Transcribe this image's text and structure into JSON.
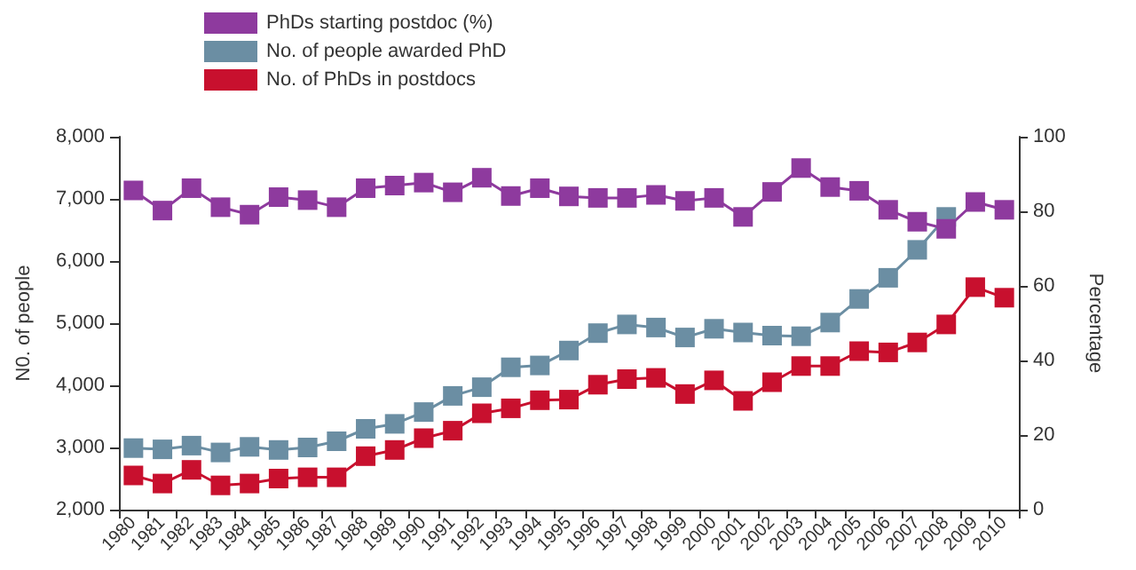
{
  "chart_data": {
    "type": "line",
    "ylabel": "N0. of people",
    "y2label": "Percentage",
    "categories": [
      "1980",
      "1981",
      "1982",
      "1983",
      "1984",
      "1985",
      "1986",
      "1987",
      "1988",
      "1989",
      "1990",
      "1991",
      "1992",
      "1993",
      "1994",
      "1995",
      "1996",
      "1997",
      "1998",
      "1999",
      "2000",
      "2001",
      "2002",
      "2003",
      "2004",
      "2005",
      "2006",
      "2007",
      "2008",
      "2009",
      "2010"
    ],
    "series": [
      {
        "name": "PhDs starting postdoc (%)",
        "color": "#8e3a9e",
        "axis": "y2",
        "values": [
          85.6,
          80.2,
          86.2,
          81.1,
          79.1,
          83.8,
          83.0,
          81.1,
          86.2,
          86.9,
          87.7,
          85.1,
          89.0,
          84.1,
          86.2,
          84.0,
          83.6,
          83.6,
          84.4,
          82.8,
          83.6,
          78.5,
          85.2,
          91.6,
          86.5,
          85.5,
          80.4,
          77.2,
          75.3,
          82.5,
          80.4
        ]
      },
      {
        "name": "No. of people awarded PhD",
        "color": "#6b8ea3",
        "values": [
          2990,
          2970,
          3030,
          2920,
          3010,
          2960,
          3000,
          3100,
          3300,
          3380,
          3570,
          3830,
          3970,
          4290,
          4320,
          4560,
          4840,
          4980,
          4930,
          4770,
          4910,
          4850,
          4800,
          4790,
          5010,
          5390,
          5730,
          6180,
          6710,
          null,
          null
        ]
      },
      {
        "name": "No. of PhDs in postdocs",
        "color": "#c8102e",
        "values": [
          2550,
          2420,
          2640,
          2390,
          2420,
          2500,
          2520,
          2520,
          2860,
          2960,
          3150,
          3270,
          3550,
          3630,
          3760,
          3770,
          4010,
          4100,
          4120,
          3860,
          4080,
          3750,
          4050,
          4310,
          4310,
          4550,
          4530,
          4690,
          4980,
          5580,
          5410
        ]
      }
    ],
    "ylim": [
      2000,
      8000
    ],
    "yticks": [
      {
        "value": 2000,
        "label": "2,000"
      },
      {
        "value": 3000,
        "label": "3,000"
      },
      {
        "value": 4000,
        "label": "4,000"
      },
      {
        "value": 5000,
        "label": "5,000"
      },
      {
        "value": 6000,
        "label": "6,000"
      },
      {
        "value": 7000,
        "label": "7,000"
      },
      {
        "value": 8000,
        "label": "8,000"
      }
    ],
    "y2lim": [
      0,
      100
    ],
    "y2ticks": [
      0,
      20,
      40,
      60,
      80,
      100
    ],
    "grid": false,
    "legend": "top left",
    "marker": "square",
    "line_style": "solid"
  }
}
